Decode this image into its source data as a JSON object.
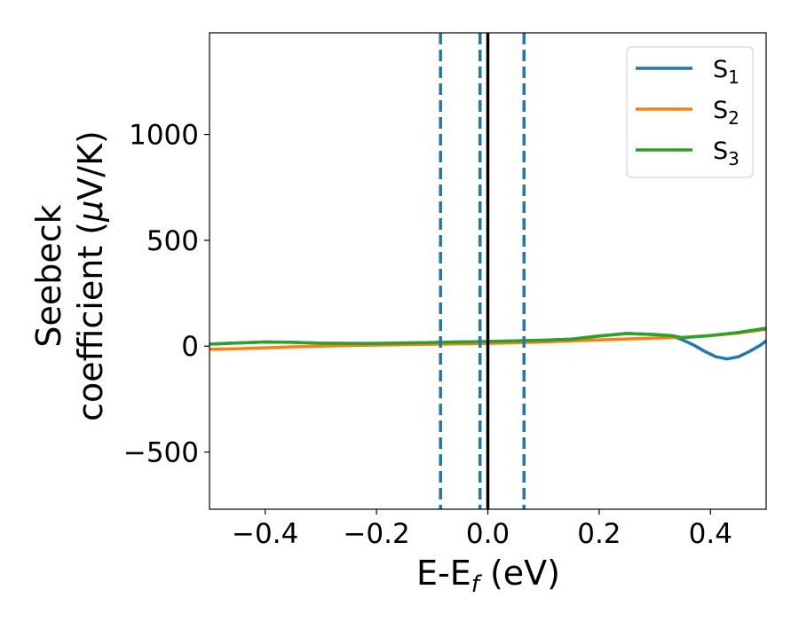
{
  "chart_data": {
    "type": "line",
    "title": "",
    "xlabel": "E-E",
    "xlabel_sub": "f",
    "xlabel_unit": " (eV)",
    "ylabel_line1": "Seebeck",
    "ylabel_line2": "coefficient  (",
    "ylabel_mu": "μ",
    "ylabel_unit": "V/K)",
    "xlim": [
      -0.5,
      0.5
    ],
    "ylim": [
      -770,
      1480
    ],
    "xticks": [
      {
        "value": -0.4,
        "label": "−0.4"
      },
      {
        "value": -0.2,
        "label": "−0.2"
      },
      {
        "value": 0.0,
        "label": "0.0"
      },
      {
        "value": 0.2,
        "label": "0.2"
      },
      {
        "value": 0.4,
        "label": "0.4"
      }
    ],
    "yticks": [
      {
        "value": -500,
        "label": "−500"
      },
      {
        "value": 0,
        "label": "0"
      },
      {
        "value": 500,
        "label": "500"
      },
      {
        "value": 1000,
        "label": "1000"
      }
    ],
    "grid": false,
    "legend_position": "top-right",
    "series": [
      {
        "name": "S",
        "subscript": "1",
        "color": "#1f77b4",
        "x": [
          -0.5,
          -0.45,
          -0.4,
          -0.35,
          -0.3,
          -0.25,
          -0.2,
          -0.15,
          -0.1,
          -0.05,
          0.0,
          0.05,
          0.1,
          0.15,
          0.2,
          0.25,
          0.3,
          0.33,
          0.35,
          0.37,
          0.39,
          0.41,
          0.43,
          0.45,
          0.47,
          0.49,
          0.5
        ],
        "y": [
          10,
          15,
          20,
          18,
          14,
          13,
          13,
          15,
          17,
          20,
          22,
          25,
          28,
          33,
          48,
          60,
          55,
          48,
          30,
          5,
          -25,
          -50,
          -60,
          -50,
          -25,
          5,
          25
        ]
      },
      {
        "name": "S",
        "subscript": "2",
        "color": "#ff7f0e",
        "x": [
          -0.5,
          -0.45,
          -0.4,
          -0.35,
          -0.3,
          -0.25,
          -0.2,
          -0.15,
          -0.1,
          -0.05,
          0.0,
          0.05,
          0.1,
          0.15,
          0.2,
          0.25,
          0.3,
          0.35,
          0.4,
          0.45,
          0.5
        ],
        "y": [
          -15,
          -12,
          -8,
          -3,
          0,
          3,
          5,
          7,
          9,
          11,
          13,
          16,
          20,
          25,
          30,
          34,
          38,
          42,
          50,
          62,
          80
        ]
      },
      {
        "name": "S",
        "subscript": "3",
        "color": "#2ca02c",
        "x": [
          -0.5,
          -0.45,
          -0.4,
          -0.35,
          -0.3,
          -0.25,
          -0.2,
          -0.15,
          -0.1,
          -0.05,
          0.0,
          0.05,
          0.1,
          0.15,
          0.2,
          0.25,
          0.3,
          0.33,
          0.35,
          0.4,
          0.45,
          0.5
        ],
        "y": [
          10,
          15,
          20,
          18,
          14,
          13,
          13,
          15,
          17,
          20,
          22,
          25,
          28,
          33,
          48,
          60,
          55,
          50,
          40,
          50,
          65,
          85
        ]
      }
    ],
    "vertical_lines": [
      {
        "x": -0.085,
        "style": "dashed",
        "color": "#1f77b4"
      },
      {
        "x": -0.014,
        "style": "dashed",
        "color": "#1f77b4"
      },
      {
        "x": 0.0,
        "style": "solid",
        "color": "#000000"
      },
      {
        "x": 0.065,
        "style": "dashed",
        "color": "#1f77b4"
      }
    ]
  }
}
